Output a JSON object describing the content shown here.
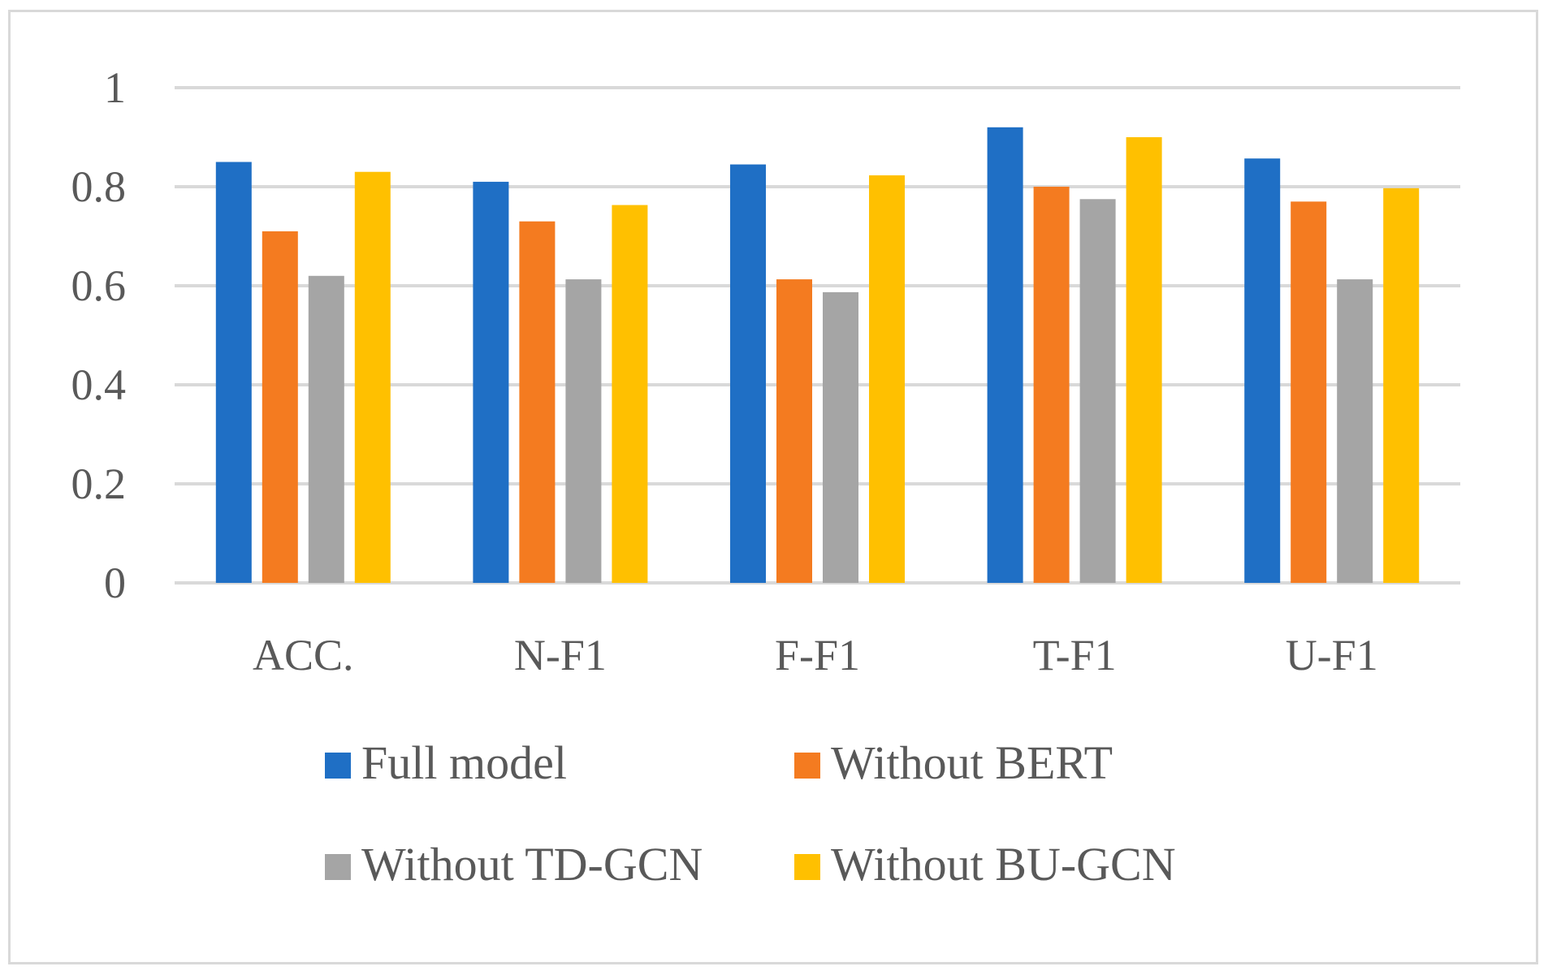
{
  "chart_data": {
    "type": "bar",
    "title": "",
    "xlabel": "",
    "ylabel": "",
    "categories": [
      "ACC.",
      "N-F1",
      "F-F1",
      "T-F1",
      "U-F1"
    ],
    "series": [
      {
        "name": "Full model",
        "color": "#1f6fc5",
        "values": [
          0.85,
          0.81,
          0.845,
          0.92,
          0.857
        ]
      },
      {
        "name": "Without BERT",
        "color": "#f47b20",
        "values": [
          0.71,
          0.73,
          0.613,
          0.8,
          0.77
        ]
      },
      {
        "name": "Without TD-GCN",
        "color": "#a5a5a5",
        "values": [
          0.62,
          0.613,
          0.587,
          0.775,
          0.613
        ]
      },
      {
        "name": "Without BU-GCN",
        "color": "#ffc000",
        "values": [
          0.83,
          0.763,
          0.823,
          0.9,
          0.797
        ]
      }
    ],
    "ylim": [
      0,
      1
    ],
    "yticks": [
      "0",
      "0.2",
      "0.4",
      "0.6",
      "0.8",
      "1"
    ],
    "ytick_values": [
      0,
      0.2,
      0.4,
      0.6,
      0.8,
      1
    ],
    "grid": true,
    "legend_position": "bottom"
  }
}
